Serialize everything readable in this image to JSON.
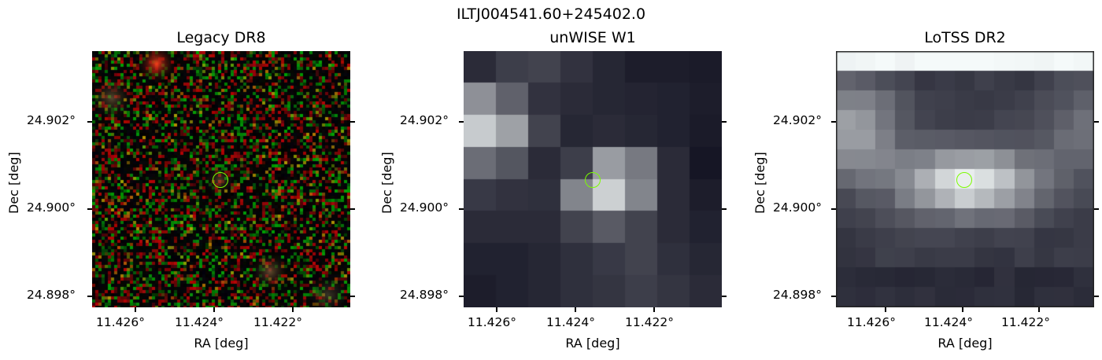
{
  "figure": {
    "title": "ILTJ004541.60+245402.0",
    "panels": [
      {
        "title": "Legacy DR8",
        "xlabel": "RA [deg]",
        "ylabel": "Dec [deg]",
        "xticks": [
          "11.426°",
          "11.424°",
          "11.422°"
        ],
        "yticks": [
          "24.902°",
          "24.900°",
          "24.898°"
        ],
        "colormap": "rgb-noise"
      },
      {
        "title": "unWISE W1",
        "xlabel": "RA [deg]",
        "ylabel": "Dec [deg]",
        "xticks": [
          "11.426°",
          "11.424°",
          "11.422°"
        ],
        "yticks": [
          "24.902°",
          "24.900°",
          "24.898°"
        ],
        "colormap": "bone"
      },
      {
        "title": "LoTSS DR2",
        "xlabel": "RA [deg]",
        "ylabel": "Dec [deg]",
        "xticks": [
          "11.426°",
          "11.424°",
          "11.422°"
        ],
        "yticks": [
          "24.902°",
          "24.900°",
          "24.898°"
        ],
        "colormap": "bone"
      }
    ],
    "marker_color": "#7cfc00"
  }
}
